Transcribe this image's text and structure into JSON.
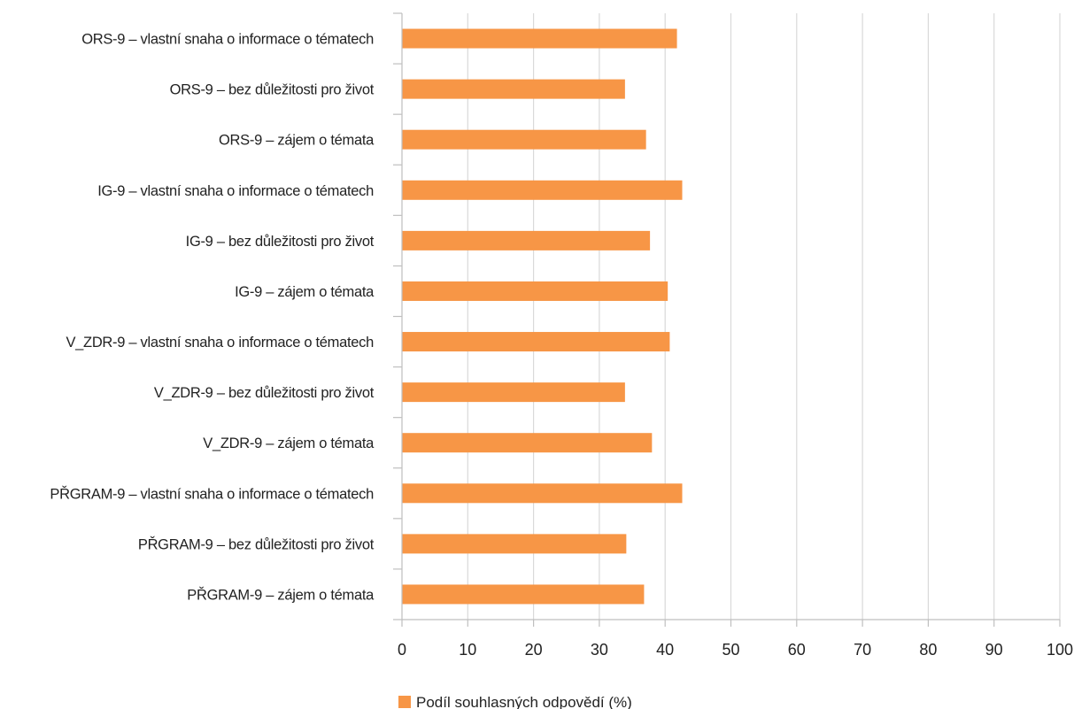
{
  "chart_data": {
    "type": "bar",
    "orientation": "horizontal",
    "categories": [
      "ORS-9 – vlastní snaha o informace o tématech",
      "ORS-9 – bez důležitosti pro život",
      "ORS-9 – zájem o témata",
      "IG-9 – vlastní snaha o informace o tématech",
      "IG-9 – bez důležitosti pro život",
      "IG-9 – zájem o témata",
      "V_ZDR-9 – vlastní snaha o informace o tématech",
      "V_ZDR-9 – bez důležitosti pro život",
      "V_ZDR-9 – zájem o témata",
      "PŘGRAM-9 – vlastní snaha o informace o tématech",
      "PŘGRAM-9 – bez důležitosti pro život",
      "PŘGRAM-9 – zájem o témata"
    ],
    "series": [
      {
        "name": "Podíl souhlasných odpovědí (%)",
        "color": "#F79646",
        "values": [
          41.8,
          33.9,
          37.1,
          42.6,
          37.7,
          40.4,
          40.7,
          33.9,
          38.0,
          42.6,
          34.1,
          36.8
        ]
      }
    ],
    "xlim": [
      0,
      100
    ],
    "xticks": [
      0,
      10,
      20,
      30,
      40,
      50,
      60,
      70,
      80,
      90,
      100
    ],
    "grid": "vertical",
    "legend_position": "bottom"
  }
}
